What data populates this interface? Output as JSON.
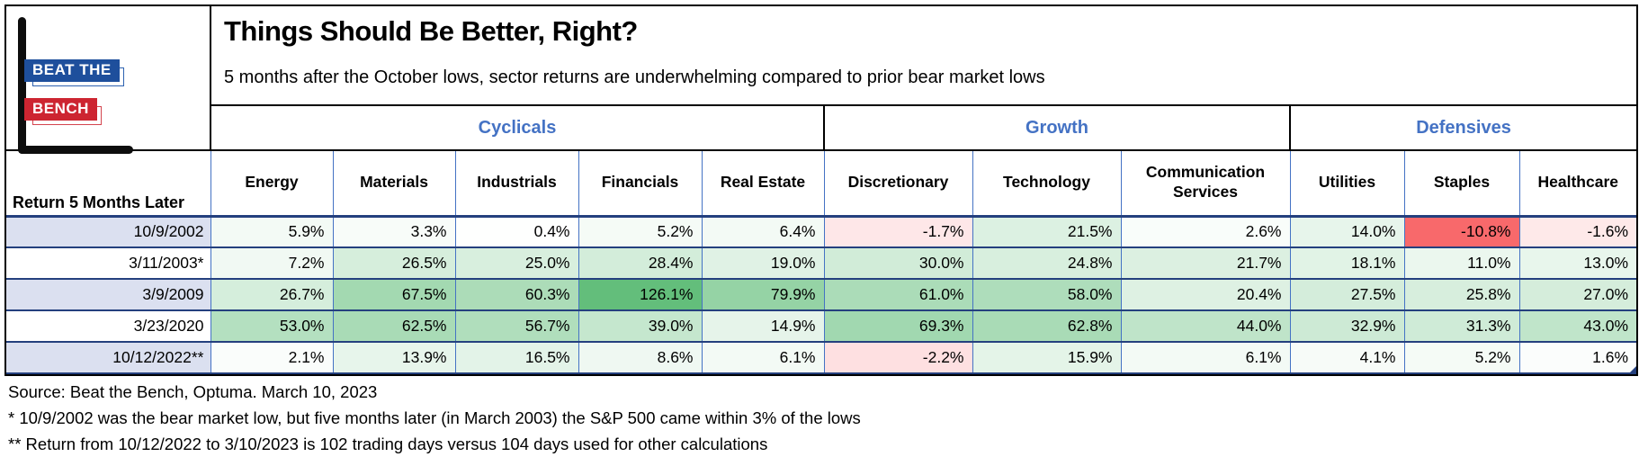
{
  "logo": {
    "line1": "BEAT THE",
    "line2": "BENCH",
    "blue": "#1e4f9c",
    "red": "#cd2531"
  },
  "header": {
    "title": "Things Should Be Better, Right?",
    "subtitle": "5 months after the October lows, sector returns are underwhelming compared to prior bear market lows"
  },
  "palette": {
    "group_label_blue": "#4472c4",
    "grid_blue": "#4472c4",
    "grid_navy": "#24407e",
    "negative_strong": "#f8696b",
    "positive_strong": "#63be7b"
  },
  "chart_data": {
    "type": "heatmap",
    "title": "Things Should Be Better, Right?",
    "subtitle": "5 months after the October lows, sector returns are underwhelming compared to prior bear market lows",
    "row_header": "Return 5 Months Later",
    "groups": [
      {
        "label": "Cyclicals",
        "span": 5
      },
      {
        "label": "Growth",
        "span": 3
      },
      {
        "label": "Defensives",
        "span": 3
      }
    ],
    "columns": [
      "Energy",
      "Materials",
      "Industrials",
      "Financials",
      "Real Estate",
      "Discretionary",
      "Technology",
      "Communication Services",
      "Utilities",
      "Staples",
      "Healthcare"
    ],
    "rows": [
      "10/9/2002",
      "3/11/2003*",
      "3/9/2009",
      "3/23/2020",
      "10/12/2022**"
    ],
    "values": [
      [
        5.9,
        3.3,
        0.4,
        5.2,
        6.4,
        -1.7,
        21.5,
        2.6,
        14.0,
        -10.8,
        -1.6
      ],
      [
        7.2,
        26.5,
        25.0,
        28.4,
        19.0,
        30.0,
        24.8,
        21.7,
        18.1,
        11.0,
        13.0
      ],
      [
        26.7,
        67.5,
        60.3,
        126.1,
        79.9,
        61.0,
        58.0,
        20.4,
        27.5,
        25.8,
        27.0
      ],
      [
        53.0,
        62.5,
        56.7,
        39.0,
        14.9,
        69.3,
        62.8,
        44.0,
        32.9,
        31.3,
        43.0
      ],
      [
        2.1,
        13.9,
        16.5,
        8.6,
        6.1,
        -2.2,
        15.9,
        6.1,
        4.1,
        5.2,
        1.6
      ]
    ],
    "value_suffix": "%",
    "color_scale": {
      "min": -10.8,
      "max": 126.1,
      "min_color": "#f8696b",
      "zero_color": "#ffffff",
      "max_color": "#63be7b",
      "gamma": 0.85
    },
    "row_label_fills": [
      "#dbe0f0",
      "#ffffff"
    ],
    "legend_position": "none",
    "grid": true
  },
  "footnotes": [
    "Source: Beat the Bench, Optuma. March 10, 2023",
    "* 10/9/2002 was the bear market low, but five months later (in March 2003) the S&P 500 came within 3% of the lows",
    "** Return from 10/12/2022 to 3/10/2023 is 102 trading days versus 104 days used for other calculations"
  ]
}
